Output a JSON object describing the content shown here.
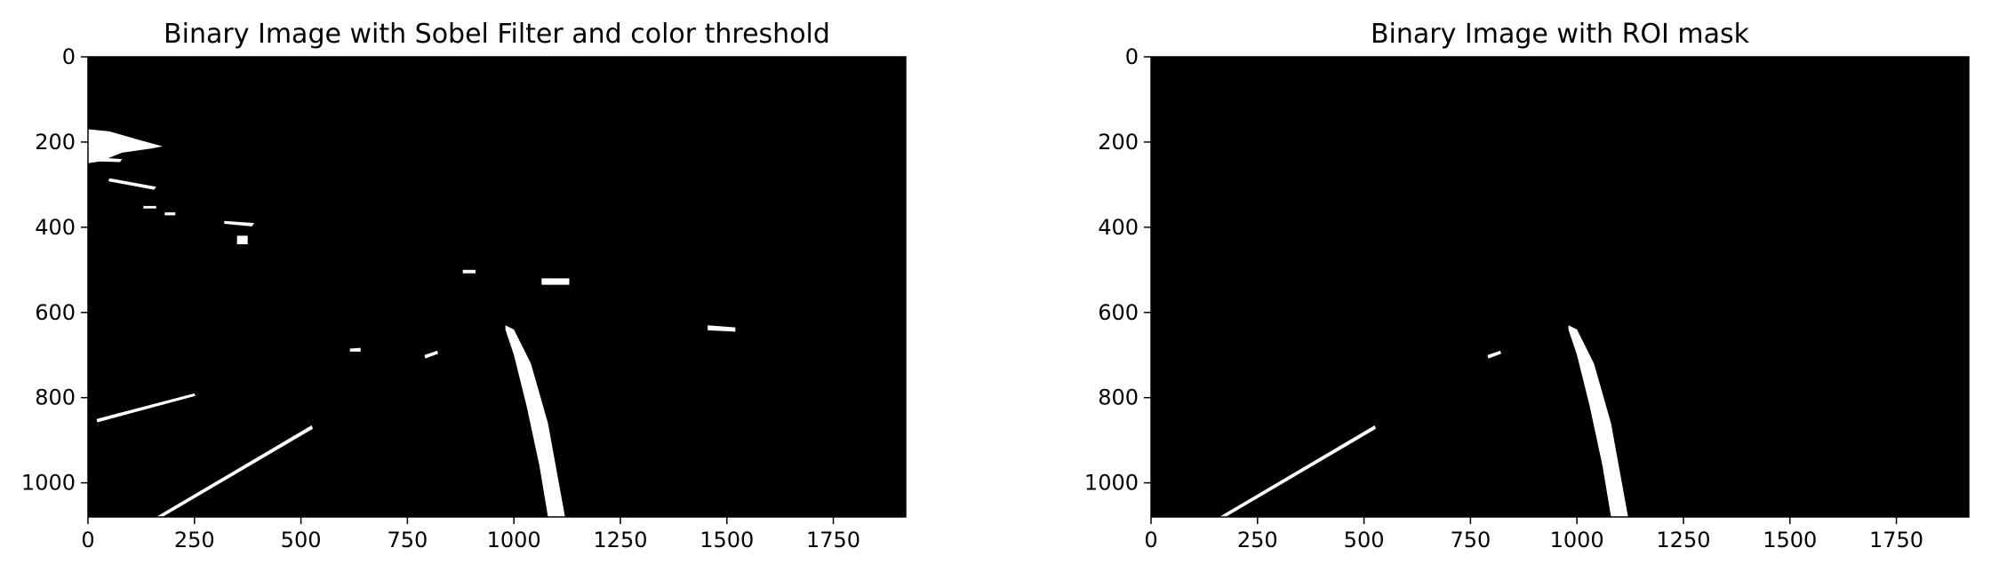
{
  "chart_data": [
    {
      "type": "heatmap",
      "title": "Binary Image with Sobel Filter and color threshold",
      "xlim": [
        0,
        1920
      ],
      "ylim": [
        1080,
        0
      ],
      "xticks": [
        0,
        250,
        500,
        750,
        1000,
        1250,
        1500,
        1750
      ],
      "yticks": [
        0,
        200,
        400,
        600,
        800,
        1000
      ],
      "background_color": "#000000",
      "foreground_color": "#ffffff",
      "regions": [
        [
          [
            0,
            170
          ],
          [
            50,
            175
          ],
          [
            120,
            195
          ],
          [
            175,
            210
          ],
          [
            150,
            215
          ],
          [
            80,
            225
          ],
          [
            30,
            245
          ],
          [
            0,
            250
          ]
        ],
        [
          [
            5,
            235
          ],
          [
            80,
            240
          ],
          [
            75,
            247
          ],
          [
            5,
            245
          ]
        ],
        [
          [
            50,
            285
          ],
          [
            160,
            305
          ],
          [
            155,
            312
          ],
          [
            48,
            292
          ]
        ],
        [
          [
            130,
            350
          ],
          [
            160,
            350
          ],
          [
            160,
            356
          ],
          [
            130,
            356
          ]
        ],
        [
          [
            180,
            365
          ],
          [
            205,
            365
          ],
          [
            205,
            372
          ],
          [
            180,
            372
          ]
        ],
        [
          [
            320,
            385
          ],
          [
            390,
            390
          ],
          [
            385,
            398
          ],
          [
            320,
            392
          ]
        ],
        [
          [
            350,
            420
          ],
          [
            375,
            420
          ],
          [
            375,
            440
          ],
          [
            350,
            440
          ]
        ],
        [
          [
            880,
            500
          ],
          [
            910,
            500
          ],
          [
            910,
            508
          ],
          [
            880,
            508
          ]
        ],
        [
          [
            1065,
            520
          ],
          [
            1130,
            520
          ],
          [
            1130,
            535
          ],
          [
            1065,
            535
          ]
        ],
        [
          [
            1455,
            630
          ],
          [
            1520,
            635
          ],
          [
            1520,
            645
          ],
          [
            1455,
            642
          ]
        ],
        [
          [
            615,
            685
          ],
          [
            640,
            683
          ],
          [
            640,
            692
          ],
          [
            615,
            692
          ]
        ],
        [
          [
            790,
            700
          ],
          [
            820,
            690
          ],
          [
            822,
            697
          ],
          [
            792,
            708
          ]
        ],
        [
          [
            20,
            850
          ],
          [
            250,
            790
          ],
          [
            252,
            796
          ],
          [
            22,
            858
          ]
        ],
        [
          [
            160,
            1080
          ],
          [
            525,
            865
          ],
          [
            528,
            873
          ],
          [
            175,
            1080
          ]
        ],
        [
          [
            980,
            630
          ],
          [
            1000,
            640
          ],
          [
            1040,
            720
          ],
          [
            1080,
            860
          ],
          [
            1120,
            1080
          ],
          [
            1080,
            1080
          ],
          [
            1060,
            960
          ],
          [
            1030,
            820
          ],
          [
            1000,
            700
          ],
          [
            980,
            640
          ]
        ]
      ]
    },
    {
      "type": "heatmap",
      "title": "Binary Image with ROI mask",
      "xlim": [
        0,
        1920
      ],
      "ylim": [
        1080,
        0
      ],
      "xticks": [
        0,
        250,
        500,
        750,
        1000,
        1250,
        1500,
        1750
      ],
      "yticks": [
        0,
        200,
        400,
        600,
        800,
        1000
      ],
      "background_color": "#000000",
      "foreground_color": "#ffffff",
      "regions": [
        [
          [
            790,
            700
          ],
          [
            820,
            690
          ],
          [
            822,
            697
          ],
          [
            792,
            708
          ]
        ],
        [
          [
            160,
            1080
          ],
          [
            525,
            865
          ],
          [
            528,
            873
          ],
          [
            175,
            1080
          ]
        ],
        [
          [
            980,
            630
          ],
          [
            1000,
            640
          ],
          [
            1040,
            720
          ],
          [
            1080,
            860
          ],
          [
            1120,
            1080
          ],
          [
            1080,
            1080
          ],
          [
            1060,
            960
          ],
          [
            1030,
            820
          ],
          [
            1000,
            700
          ],
          [
            980,
            640
          ]
        ]
      ]
    }
  ]
}
